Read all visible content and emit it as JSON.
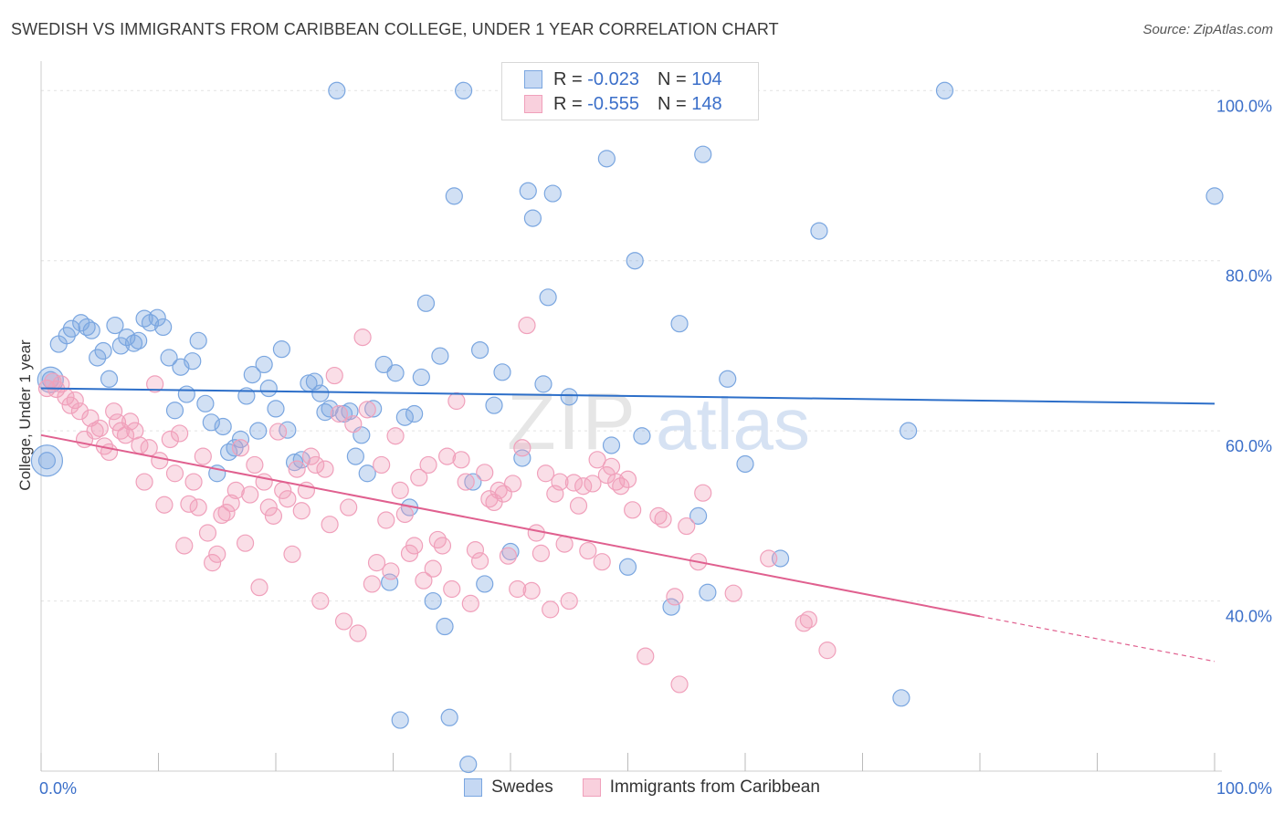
{
  "title": "SWEDISH VS IMMIGRANTS FROM CARIBBEAN COLLEGE, UNDER 1 YEAR CORRELATION CHART",
  "source": "Source: ZipAtlas.com",
  "watermark": {
    "zip": "ZIP",
    "atlas": "atlas"
  },
  "legend": {
    "r_label": "R =",
    "n_label": "N =",
    "rows": [
      {
        "r": "-0.023",
        "n": "104"
      },
      {
        "r": "-0.555",
        "n": "148"
      }
    ]
  },
  "chart_data": {
    "type": "scatter",
    "title": "SWEDISH VS IMMIGRANTS FROM CARIBBEAN COLLEGE, UNDER 1 YEAR CORRELATION CHART",
    "xlabel": "",
    "ylabel": "College, Under 1 year",
    "xlim": [
      0,
      100
    ],
    "ylim": [
      20,
      104
    ],
    "x_tick_labels": [
      "0.0%",
      "100.0%"
    ],
    "y_ticks": [
      40,
      60,
      80,
      100
    ],
    "y_tick_labels": [
      "40.0%",
      "60.0%",
      "80.0%",
      "100.0%"
    ],
    "grid": true,
    "legend_position": "top-center",
    "colors": {
      "swedes": "#7aa6e0",
      "caribbean": "#f0a0bb",
      "swedes_line": "#2d6fc9",
      "caribbean_line": "#e0608f",
      "tick_label": "#3b6fc9"
    },
    "series": [
      {
        "name": "Swedes",
        "r": -0.023,
        "n": 104,
        "trend": {
          "x": [
            0,
            100
          ],
          "y": [
            65.0,
            63.2
          ]
        },
        "points": [
          [
            0.5,
            56.5
          ],
          [
            0.8,
            66
          ],
          [
            1.5,
            70.2
          ],
          [
            2.2,
            71.2
          ],
          [
            2.6,
            72
          ],
          [
            3.4,
            72.7
          ],
          [
            3.9,
            72.2
          ],
          [
            4.3,
            71.8
          ],
          [
            4.8,
            68.6
          ],
          [
            5.3,
            69.4
          ],
          [
            5.8,
            66.1
          ],
          [
            6.3,
            72.4
          ],
          [
            6.8,
            70
          ],
          [
            7.3,
            71
          ],
          [
            7.9,
            70.3
          ],
          [
            8.3,
            70.6
          ],
          [
            8.8,
            73.2
          ],
          [
            9.3,
            72.7
          ],
          [
            9.9,
            73.3
          ],
          [
            10.4,
            72.2
          ],
          [
            10.9,
            68.6
          ],
          [
            11.4,
            62.4
          ],
          [
            11.9,
            67.5
          ],
          [
            12.4,
            64.3
          ],
          [
            12.9,
            68.2
          ],
          [
            13.4,
            70.6
          ],
          [
            14.0,
            63.2
          ],
          [
            14.5,
            61
          ],
          [
            15.0,
            55
          ],
          [
            15.5,
            60.5
          ],
          [
            16.0,
            57.5
          ],
          [
            16.5,
            58
          ],
          [
            17.0,
            59
          ],
          [
            17.5,
            64.1
          ],
          [
            18.0,
            66.6
          ],
          [
            18.5,
            60
          ],
          [
            19.0,
            67.8
          ],
          [
            19.4,
            65
          ],
          [
            20.0,
            62.6
          ],
          [
            20.5,
            69.6
          ],
          [
            21.0,
            60.1
          ],
          [
            21.6,
            56.3
          ],
          [
            22.2,
            56.6
          ],
          [
            22.8,
            65.6
          ],
          [
            23.3,
            65.8
          ],
          [
            23.8,
            64.4
          ],
          [
            24.2,
            62.2
          ],
          [
            24.6,
            62.6
          ],
          [
            25.2,
            100
          ],
          [
            25.8,
            62
          ],
          [
            26.3,
            62.3
          ],
          [
            26.8,
            57
          ],
          [
            27.3,
            59.5
          ],
          [
            27.8,
            55
          ],
          [
            28.3,
            62.6
          ],
          [
            29.2,
            67.8
          ],
          [
            29.7,
            42.2
          ],
          [
            30.2,
            66.8
          ],
          [
            30.6,
            26
          ],
          [
            31.0,
            61.6
          ],
          [
            31.4,
            51
          ],
          [
            31.8,
            62
          ],
          [
            32.4,
            66.3
          ],
          [
            32.8,
            75
          ],
          [
            33.4,
            40
          ],
          [
            34.0,
            68.8
          ],
          [
            34.4,
            37
          ],
          [
            34.8,
            26.3
          ],
          [
            35.2,
            87.6
          ],
          [
            36.0,
            100
          ],
          [
            36.4,
            20.8
          ],
          [
            36.8,
            54
          ],
          [
            37.4,
            69.5
          ],
          [
            37.8,
            42
          ],
          [
            38.6,
            63
          ],
          [
            39.3,
            66.9
          ],
          [
            40.0,
            45.8
          ],
          [
            41.0,
            56.8
          ],
          [
            41.5,
            88.2
          ],
          [
            41.9,
            85
          ],
          [
            42.8,
            65.5
          ],
          [
            43.2,
            75.7
          ],
          [
            43.6,
            87.9
          ],
          [
            45.0,
            64
          ],
          [
            47.9,
            99.5
          ],
          [
            48.2,
            92
          ],
          [
            48.6,
            58.3
          ],
          [
            50.0,
            44
          ],
          [
            50.6,
            80
          ],
          [
            51.2,
            59.4
          ],
          [
            53.7,
            39.3
          ],
          [
            54.4,
            72.6
          ],
          [
            56.0,
            50
          ],
          [
            56.4,
            92.5
          ],
          [
            56.8,
            41
          ],
          [
            58.5,
            66.1
          ],
          [
            60.0,
            56.1
          ],
          [
            63.0,
            45
          ],
          [
            66.3,
            83.5
          ],
          [
            73.3,
            28.6
          ],
          [
            73.9,
            60
          ],
          [
            77.0,
            100
          ],
          [
            100,
            87.6
          ]
        ]
      },
      {
        "name": "Immigrants from Caribbean",
        "r": -0.555,
        "n": 148,
        "trend": {
          "x": [
            0,
            80
          ],
          "y": [
            59.5,
            38.2
          ]
        },
        "trend_dashed": {
          "x": [
            80,
            100
          ],
          "y": [
            38.2,
            32.9
          ]
        },
        "points": [
          [
            0.5,
            65
          ],
          [
            1.0,
            65.8
          ],
          [
            1.3,
            64.9
          ],
          [
            1.7,
            65.5
          ],
          [
            2.1,
            64
          ],
          [
            2.5,
            63
          ],
          [
            2.9,
            63.6
          ],
          [
            3.3,
            62.3
          ],
          [
            3.7,
            59
          ],
          [
            4.2,
            61.5
          ],
          [
            4.6,
            60
          ],
          [
            5.0,
            60.3
          ],
          [
            5.4,
            58.2
          ],
          [
            5.8,
            57.5
          ],
          [
            6.2,
            62.3
          ],
          [
            6.5,
            61
          ],
          [
            6.8,
            60
          ],
          [
            7.2,
            59.5
          ],
          [
            7.6,
            61.1
          ],
          [
            8.0,
            60
          ],
          [
            8.4,
            58.3
          ],
          [
            8.8,
            54
          ],
          [
            9.2,
            58
          ],
          [
            9.7,
            65.5
          ],
          [
            10.1,
            56.5
          ],
          [
            10.5,
            51.3
          ],
          [
            11.0,
            59
          ],
          [
            11.4,
            55
          ],
          [
            11.8,
            59.7
          ],
          [
            12.2,
            46.5
          ],
          [
            12.6,
            51.4
          ],
          [
            13.0,
            54
          ],
          [
            13.4,
            51
          ],
          [
            13.8,
            57
          ],
          [
            14.2,
            48
          ],
          [
            14.6,
            44.5
          ],
          [
            15.0,
            45.5
          ],
          [
            15.4,
            50.1
          ],
          [
            15.8,
            50.4
          ],
          [
            16.2,
            51.5
          ],
          [
            16.6,
            53
          ],
          [
            17.0,
            58
          ],
          [
            17.4,
            46.8
          ],
          [
            17.8,
            52.5
          ],
          [
            18.2,
            56
          ],
          [
            18.6,
            41.6
          ],
          [
            19.0,
            54
          ],
          [
            19.4,
            51
          ],
          [
            19.8,
            50
          ],
          [
            20.2,
            59.9
          ],
          [
            20.6,
            53
          ],
          [
            21.0,
            52
          ],
          [
            21.4,
            45.5
          ],
          [
            21.8,
            55.5
          ],
          [
            22.2,
            50.6
          ],
          [
            22.6,
            53
          ],
          [
            23.0,
            57
          ],
          [
            23.4,
            56
          ],
          [
            23.8,
            40
          ],
          [
            24.2,
            55.5
          ],
          [
            24.6,
            49
          ],
          [
            25.0,
            66.5
          ],
          [
            25.4,
            62
          ],
          [
            25.8,
            37.6
          ],
          [
            26.2,
            51
          ],
          [
            26.6,
            60.8
          ],
          [
            27.0,
            36.2
          ],
          [
            27.4,
            71
          ],
          [
            27.8,
            62.5
          ],
          [
            28.2,
            42
          ],
          [
            28.6,
            44.5
          ],
          [
            29.0,
            56
          ],
          [
            29.4,
            49.5
          ],
          [
            29.8,
            43.5
          ],
          [
            30.2,
            59.4
          ],
          [
            30.6,
            53
          ],
          [
            31.0,
            50.2
          ],
          [
            31.4,
            45.6
          ],
          [
            31.8,
            46.5
          ],
          [
            32.2,
            54.5
          ],
          [
            32.6,
            42.4
          ],
          [
            33.0,
            56
          ],
          [
            33.4,
            43.8
          ],
          [
            33.8,
            47.2
          ],
          [
            34.2,
            46.5
          ],
          [
            34.6,
            57
          ],
          [
            35.0,
            41.4
          ],
          [
            35.4,
            63.5
          ],
          [
            35.8,
            56.6
          ],
          [
            36.2,
            54
          ],
          [
            36.6,
            39.7
          ],
          [
            37.0,
            46
          ],
          [
            37.4,
            44.7
          ],
          [
            37.8,
            55.1
          ],
          [
            38.2,
            52
          ],
          [
            38.6,
            51.6
          ],
          [
            39.0,
            53
          ],
          [
            39.4,
            52.6
          ],
          [
            39.8,
            45.3
          ],
          [
            40.2,
            53.8
          ],
          [
            40.6,
            41.4
          ],
          [
            41.0,
            58
          ],
          [
            41.4,
            72.4
          ],
          [
            41.8,
            41.2
          ],
          [
            42.2,
            48
          ],
          [
            42.6,
            45.6
          ],
          [
            43.0,
            55
          ],
          [
            43.4,
            39
          ],
          [
            43.8,
            52.6
          ],
          [
            44.2,
            54
          ],
          [
            44.6,
            46.7
          ],
          [
            45.0,
            40
          ],
          [
            45.4,
            53.9
          ],
          [
            45.8,
            51.2
          ],
          [
            46.2,
            53.5
          ],
          [
            46.6,
            45.9
          ],
          [
            47.0,
            53.8
          ],
          [
            47.4,
            56.6
          ],
          [
            47.8,
            44.6
          ],
          [
            48.2,
            54.8
          ],
          [
            48.6,
            55.8
          ],
          [
            49.0,
            54
          ],
          [
            49.4,
            53.5
          ],
          [
            50.0,
            54.3
          ],
          [
            50.4,
            50.7
          ],
          [
            51.5,
            33.5
          ],
          [
            52.6,
            50
          ],
          [
            53.0,
            49.6
          ],
          [
            54.0,
            40.5
          ],
          [
            54.4,
            30.2
          ],
          [
            55.0,
            48.8
          ],
          [
            56.0,
            44.6
          ],
          [
            56.4,
            52.7
          ],
          [
            59.0,
            40.9
          ],
          [
            62.0,
            45
          ],
          [
            65.0,
            37.4
          ],
          [
            65.4,
            37.8
          ],
          [
            67.0,
            34.2
          ]
        ]
      }
    ]
  }
}
